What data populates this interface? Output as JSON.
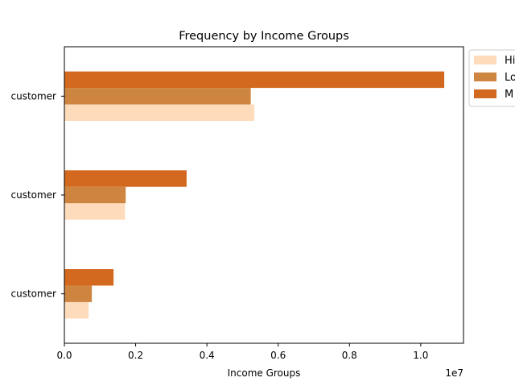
{
  "chart_data": {
    "type": "bar",
    "orientation": "horizontal",
    "title": "Frequency by Income Groups",
    "xlabel": "Income Groups",
    "ylabel": "",
    "x_offset_text": "1e7",
    "xlim": [
      0,
      11200000
    ],
    "x_ticks": [
      0,
      2000000,
      4000000,
      6000000,
      8000000,
      10000000
    ],
    "x_tick_labels": [
      "0.0",
      "0.2",
      "0.4",
      "0.6",
      "0.8",
      "1.0"
    ],
    "categories": [
      "customer",
      "customer",
      "customer"
    ],
    "category_labels_visible": [
      " customer",
      " customer",
      "customer"
    ],
    "series": [
      {
        "name": "Hi",
        "color": "#FDDBBB",
        "values": [
          5330000,
          1700000,
          680000
        ]
      },
      {
        "name": "Lo",
        "color": "#CD853F",
        "values": [
          5230000,
          1720000,
          770000
        ]
      },
      {
        "name": "M",
        "color": "#D2691E",
        "values": [
          10660000,
          3430000,
          1380000
        ]
      }
    ],
    "legend_position": "outside-top-right",
    "grid": false
  }
}
